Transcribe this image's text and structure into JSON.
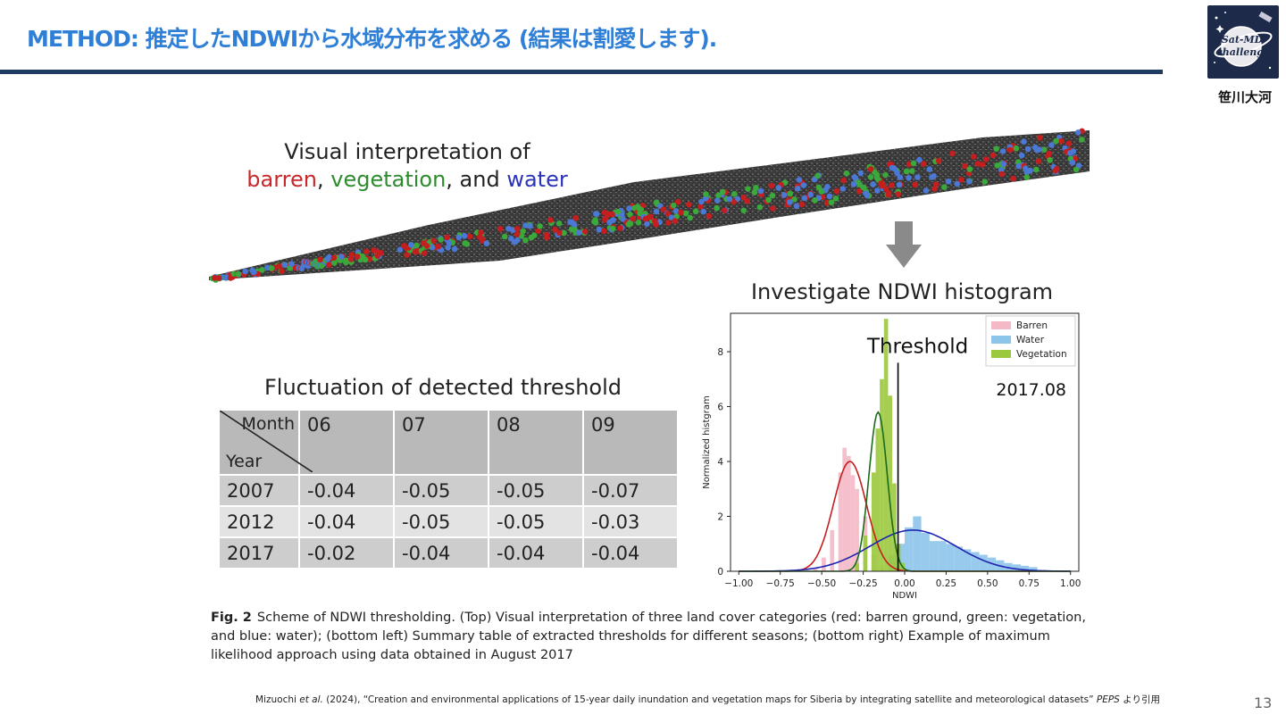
{
  "slide": {
    "title": "METHOD: 推定したNDWIから水域分布を求める (結果は割愛します).",
    "author": "笹川大河",
    "logo_text": "Sat-MD challenge",
    "page_number": "13",
    "citation": {
      "authors": "Mizuochi ",
      "etal": "et al.",
      "rest": " (2024), “Creation and environmental applications of 15-year daily inundation and vegetation maps for Siberia by integrating satellite and meteorological datasets”",
      "journal": "PEPS",
      "suffix": " より引用"
    }
  },
  "figure": {
    "swath_label": {
      "line1": "Visual interpretation of",
      "barren": "barren",
      "sep1": ", ",
      "vegetation": "vegetation",
      "sep2": ", and ",
      "water": "water"
    },
    "histogram_title": "Investigate NDWI histogram",
    "table_title": "Fluctuation of detected threshold",
    "caption": {
      "label": "Fig. 2",
      "text": "Scheme of NDWI thresholding. (Top) Visual interpretation of three land cover categories (red: barren ground, green: vegetation, and blue: water); (bottom left) Summary table of extracted thresholds for different seasons; (bottom right) Example of maximum likelihood approach using data obtained in August 2017"
    }
  },
  "table": {
    "corner_month": "Month",
    "corner_year": "Year",
    "months": [
      "06",
      "07",
      "08",
      "09"
    ],
    "rows": [
      {
        "year": "2007",
        "values": [
          "-0.04",
          "-0.05",
          "-0.05",
          "-0.07"
        ]
      },
      {
        "year": "2012",
        "values": [
          "-0.04",
          "-0.05",
          "-0.05",
          "-0.03"
        ]
      },
      {
        "year": "2017",
        "values": [
          "-0.02",
          "-0.04",
          "-0.04",
          "-0.04"
        ]
      }
    ]
  },
  "colors": {
    "title": "#2f7fd6",
    "rule": "#1f3b63",
    "barren": "#f4b8c6",
    "water": "#8cc4ea",
    "vegetation": "#9bc93d",
    "barren_curve": "#c41e1e",
    "water_curve": "#1e22b0",
    "vegetation_curve": "#1a6b1a"
  },
  "chart_data": {
    "type": "bar",
    "title": "Investigate NDWI histogram",
    "xlabel": "NDWI",
    "ylabel": "Normalized histgram",
    "xlim": [
      -1.05,
      1.05
    ],
    "ylim": [
      0,
      9.4
    ],
    "xticks": [
      -1.0,
      -0.75,
      -0.5,
      -0.25,
      0.0,
      0.25,
      0.5,
      0.75,
      1.0
    ],
    "xtick_labels": [
      "−1.00",
      "−0.75",
      "−0.50",
      "−0.25",
      "0.00",
      "0.25",
      "0.50",
      "0.75",
      "1.00"
    ],
    "yticks": [
      0,
      2,
      4,
      6,
      8
    ],
    "ytick_labels": [
      "0",
      "2",
      "4",
      "6",
      "8"
    ],
    "threshold": -0.04,
    "threshold_label": "Threshold",
    "annotation": "2017.08",
    "legend": {
      "position": "top-right",
      "entries": [
        "Barren",
        "Water",
        "Vegetation"
      ]
    },
    "bin_width": 0.05,
    "series": [
      {
        "name": "Barren",
        "bins": [
          {
            "x": -0.55,
            "y": 0.1
          },
          {
            "x": -0.5,
            "y": 0.5
          },
          {
            "x": -0.45,
            "y": 1.5
          },
          {
            "x": -0.4,
            "y": 3.6
          },
          {
            "x": -0.375,
            "y": 4.5
          },
          {
            "x": -0.35,
            "y": 4.2
          },
          {
            "x": -0.325,
            "y": 3.5
          },
          {
            "x": -0.3,
            "y": 3.0
          },
          {
            "x": -0.25,
            "y": 2.0
          },
          {
            "x": -0.2,
            "y": 0.6
          },
          {
            "x": -0.15,
            "y": 0.2
          }
        ],
        "curve": {
          "mean": -0.33,
          "sd": 0.1,
          "peak": 4.0
        }
      },
      {
        "name": "Water",
        "bins": [
          {
            "x": -0.1,
            "y": 0.6
          },
          {
            "x": -0.05,
            "y": 1.0
          },
          {
            "x": 0.0,
            "y": 1.6
          },
          {
            "x": 0.05,
            "y": 2.0
          },
          {
            "x": 0.1,
            "y": 1.4
          },
          {
            "x": 0.15,
            "y": 1.1
          },
          {
            "x": 0.2,
            "y": 1.1
          },
          {
            "x": 0.25,
            "y": 1.0
          },
          {
            "x": 0.3,
            "y": 0.9
          },
          {
            "x": 0.35,
            "y": 0.8
          },
          {
            "x": 0.4,
            "y": 0.7
          },
          {
            "x": 0.45,
            "y": 0.6
          },
          {
            "x": 0.5,
            "y": 0.5
          },
          {
            "x": 0.55,
            "y": 0.4
          },
          {
            "x": 0.6,
            "y": 0.3
          },
          {
            "x": 0.65,
            "y": 0.25
          },
          {
            "x": 0.7,
            "y": 0.2
          },
          {
            "x": 0.75,
            "y": 0.15
          },
          {
            "x": 0.8,
            "y": 0.05
          }
        ],
        "curve": {
          "mean": 0.05,
          "sd": 0.26,
          "peak": 1.5
        }
      },
      {
        "name": "Vegetation",
        "bins": [
          {
            "x": -0.3,
            "y": 0.3
          },
          {
            "x": -0.25,
            "y": 1.3
          },
          {
            "x": -0.2,
            "y": 3.6
          },
          {
            "x": -0.175,
            "y": 5.2
          },
          {
            "x": -0.15,
            "y": 7.0
          },
          {
            "x": -0.125,
            "y": 9.2
          },
          {
            "x": -0.1,
            "y": 6.4
          },
          {
            "x": -0.075,
            "y": 3.2
          },
          {
            "x": -0.05,
            "y": 1.0
          },
          {
            "x": -0.025,
            "y": 0.3
          }
        ],
        "curve": {
          "mean": -0.16,
          "sd": 0.055,
          "peak": 5.8
        }
      }
    ]
  }
}
